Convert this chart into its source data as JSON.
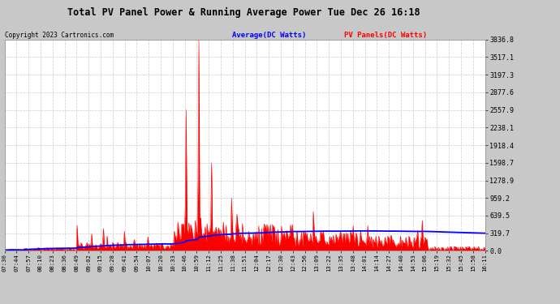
{
  "title": "Total PV Panel Power & Running Average Power Tue Dec 26 16:18",
  "copyright": "Copyright 2023 Cartronics.com",
  "legend_avg": "Average(DC Watts)",
  "legend_pv": "PV Panels(DC Watts)",
  "y_ticks": [
    0.0,
    319.7,
    639.5,
    959.2,
    1278.9,
    1598.7,
    1918.4,
    2238.1,
    2557.9,
    2877.6,
    3197.3,
    3517.1,
    3836.8
  ],
  "y_max": 3836.8,
  "x_labels": [
    "07:30",
    "07:44",
    "07:57",
    "08:10",
    "08:23",
    "08:36",
    "08:49",
    "09:02",
    "09:15",
    "09:28",
    "09:41",
    "09:54",
    "10:07",
    "10:20",
    "10:33",
    "10:46",
    "10:59",
    "11:12",
    "11:25",
    "11:38",
    "11:51",
    "12:04",
    "12:17",
    "12:30",
    "12:43",
    "12:56",
    "13:09",
    "13:22",
    "13:35",
    "13:48",
    "14:01",
    "14:14",
    "14:27",
    "14:40",
    "14:53",
    "15:06",
    "15:19",
    "15:32",
    "15:45",
    "15:58",
    "16:11"
  ],
  "fig_bg_color": "#c8c8c8",
  "plot_bg_color": "#ffffff",
  "grid_color": "#cccccc",
  "pv_color": "#ff0000",
  "avg_color": "#0000ff",
  "title_color": "#000000",
  "copyright_color": "#000000"
}
